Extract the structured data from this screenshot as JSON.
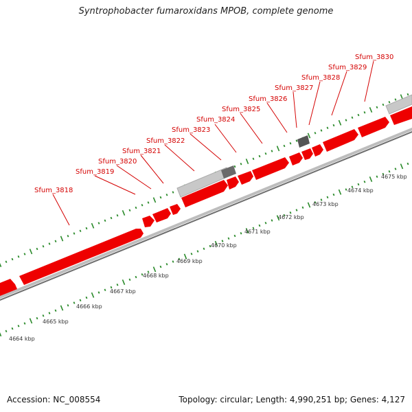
{
  "title": "Syntrophobacter fumaroxidans MPOB, complete genome",
  "footer": {
    "accession": "Accession: NC_008554",
    "summary": "Topology: circular; Length: 4,990,251 bp; Genes: 4,127"
  },
  "colors": {
    "gene": "#ee0000",
    "tick": "#2a8a2a",
    "backbone": "#999999",
    "label": "#d40000",
    "grey_feature": "#c8c8c8",
    "dark_feature": "#666666"
  },
  "axis": {
    "unit": "kbp",
    "ticks": [
      {
        "label": "4664 kbp",
        "value": 4664
      },
      {
        "label": "4665 kbp",
        "value": 4665
      },
      {
        "label": "4666 kbp",
        "value": 4666
      },
      {
        "label": "4667 kbp",
        "value": 4667
      },
      {
        "label": "4668 kbp",
        "value": 4668
      },
      {
        "label": "4669 kbp",
        "value": 4669
      },
      {
        "label": "4670 kbp",
        "value": 4670
      },
      {
        "label": "4671 kbp",
        "value": 4671
      },
      {
        "label": "4672 kbp",
        "value": 4672
      },
      {
        "label": "4673 kbp",
        "value": 4673
      },
      {
        "label": "4674 kbp",
        "value": 4674
      },
      {
        "label": "4675 kbp",
        "value": 4675
      }
    ]
  },
  "genes": [
    {
      "label": "Sfum_3818"
    },
    {
      "label": "Sfum_3819"
    },
    {
      "label": "Sfum_3820"
    },
    {
      "label": "Sfum_3821"
    },
    {
      "label": "Sfum_3822"
    },
    {
      "label": "Sfum_3823"
    },
    {
      "label": "Sfum_3824"
    },
    {
      "label": "Sfum_3825"
    },
    {
      "label": "Sfum_3826"
    },
    {
      "label": "Sfum_3827"
    },
    {
      "label": "Sfum_3828"
    },
    {
      "label": "Sfum_3829"
    },
    {
      "label": "Sfum_3830"
    }
  ]
}
